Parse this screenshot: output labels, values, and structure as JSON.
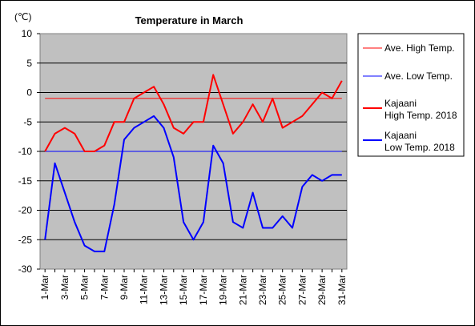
{
  "chart_data": {
    "type": "line",
    "title": "Temperature in March",
    "unit": "(℃)",
    "ylim": [
      -30,
      10
    ],
    "yticks": [
      10,
      5,
      0,
      -5,
      -10,
      -15,
      -20,
      -25,
      -30
    ],
    "grid": true,
    "legend_position": "right",
    "x": [
      "1-Mar",
      "2-Mar",
      "3-Mar",
      "4-Mar",
      "5-Mar",
      "6-Mar",
      "7-Mar",
      "8-Mar",
      "9-Mar",
      "10-Mar",
      "11-Mar",
      "12-Mar",
      "13-Mar",
      "14-Mar",
      "15-Mar",
      "16-Mar",
      "17-Mar",
      "18-Mar",
      "19-Mar",
      "20-Mar",
      "21-Mar",
      "22-Mar",
      "23-Mar",
      "24-Mar",
      "25-Mar",
      "26-Mar",
      "27-Mar",
      "28-Mar",
      "29-Mar",
      "30-Mar",
      "31-Mar"
    ],
    "x_tick_labels": [
      "1-Mar",
      "3-Mar",
      "5-Mar",
      "7-Mar",
      "9-Mar",
      "11-Mar",
      "13-Mar",
      "15-Mar",
      "17-Mar",
      "19-Mar",
      "21-Mar",
      "23-Mar",
      "25-Mar",
      "27-Mar",
      "29-Mar",
      "31-Mar"
    ],
    "series": [
      {
        "name": "Ave. High Temp.",
        "color": "#ff0000",
        "style": "thin",
        "values": [
          -1,
          -1,
          -1,
          -1,
          -1,
          -1,
          -1,
          -1,
          -1,
          -1,
          -1,
          -1,
          -1,
          -1,
          -1,
          -1,
          -1,
          -1,
          -1,
          -1,
          -1,
          -1,
          -1,
          -1,
          -1,
          -1,
          -1,
          -1,
          -1,
          -1,
          -1
        ]
      },
      {
        "name": "Ave. Low Temp.",
        "color": "#0000ff",
        "style": "thin",
        "values": [
          -10,
          -10,
          -10,
          -10,
          -10,
          -10,
          -10,
          -10,
          -10,
          -10,
          -10,
          -10,
          -10,
          -10,
          -10,
          -10,
          -10,
          -10,
          -10,
          -10,
          -10,
          -10,
          -10,
          -10,
          -10,
          -10,
          -10,
          -10,
          -10,
          -10,
          -10
        ]
      },
      {
        "name": "Kajaani\nHigh Temp. 2018",
        "color": "#ff0000",
        "style": "thick",
        "values": [
          -10,
          -7,
          -6,
          -7,
          -10,
          -10,
          -9,
          -5,
          -5,
          -1,
          0,
          1,
          -2,
          -6,
          -7,
          -5,
          -5,
          3,
          -2,
          -7,
          -5,
          -2,
          -5,
          -1,
          -6,
          -5,
          -4,
          -2,
          0,
          -1,
          2
        ]
      },
      {
        "name": "Kajaani\nLow Temp. 2018",
        "color": "#0000ff",
        "style": "thick",
        "values": [
          -25,
          -12,
          -17,
          -22,
          -26,
          -27,
          -27,
          -19,
          -8,
          -6,
          -5,
          -4,
          -6,
          -11,
          -22,
          -25,
          -22,
          -9,
          -12,
          -22,
          -23,
          -17,
          -23,
          -23,
          -21,
          -23,
          -16,
          -14,
          -15,
          -14,
          -14
        ]
      }
    ]
  }
}
